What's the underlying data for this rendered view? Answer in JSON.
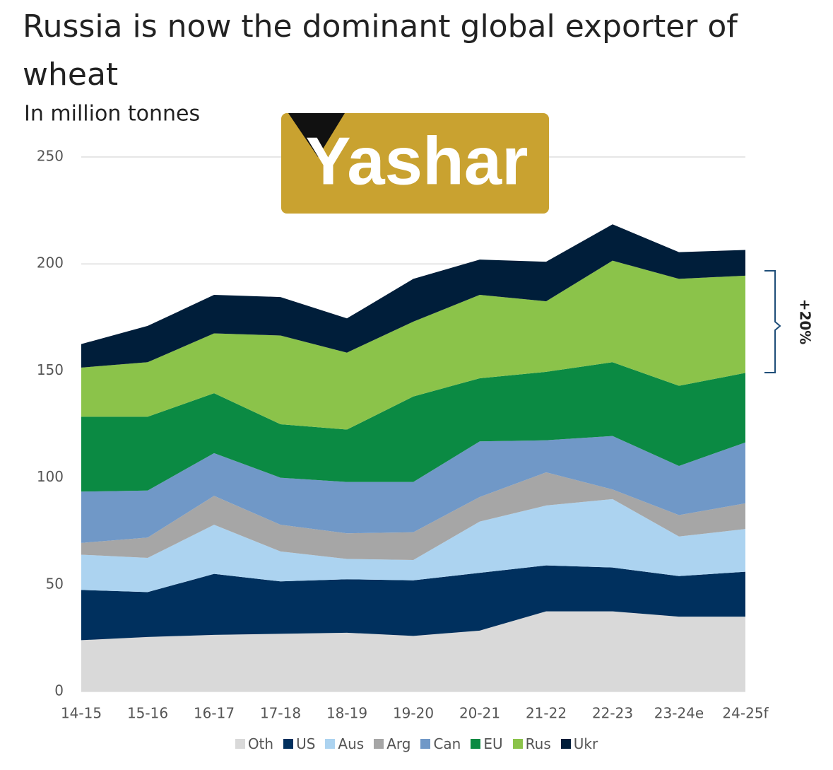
{
  "chart_data": {
    "type": "stacked-area",
    "title": "Russia is now the dominant global exporter of wheat",
    "subtitle": "In million tonnes",
    "logo": "Yashar",
    "annotation": "+20%",
    "categories": [
      "14-15",
      "15-16",
      "16-17",
      "17-18",
      "18-19",
      "19-20",
      "20-21",
      "21-22",
      "22-23",
      "23-24e",
      "24-25f"
    ],
    "series": [
      {
        "name": "Oth",
        "color": "#d9d9d9",
        "values": [
          24,
          25.5,
          26.5,
          27,
          27.5,
          26,
          28.5,
          37.5,
          37.5,
          35,
          35
        ]
      },
      {
        "name": "US",
        "color": "#00305e",
        "values": [
          23.5,
          21,
          28.5,
          24.5,
          25,
          26,
          27,
          21.5,
          20.5,
          19,
          21
        ]
      },
      {
        "name": "Aus",
        "color": "#acd3f0",
        "values": [
          16.5,
          16,
          23,
          14,
          9.5,
          9.5,
          24,
          28,
          32,
          18.5,
          20
        ]
      },
      {
        "name": "Arg",
        "color": "#a6a6a6",
        "values": [
          5.5,
          9.5,
          13.5,
          12.5,
          12,
          13,
          11.5,
          15.5,
          4.5,
          10,
          12
        ]
      },
      {
        "name": "Can",
        "color": "#7098c7",
        "values": [
          24,
          22,
          20,
          22,
          24,
          23.5,
          26,
          15,
          25,
          23,
          28.5
        ]
      },
      {
        "name": "EU",
        "color": "#0b8a43",
        "values": [
          35,
          34.5,
          28,
          25,
          24.5,
          40,
          29.5,
          32,
          34.5,
          37.5,
          32.5
        ]
      },
      {
        "name": "Rus",
        "color": "#8bc34a",
        "values": [
          23,
          25.5,
          28,
          41.5,
          36,
          35,
          39,
          33,
          47.5,
          50,
          45.5
        ]
      },
      {
        "name": "Ukr",
        "color": "#001e3a",
        "values": [
          11,
          17,
          18,
          18,
          16,
          20,
          16.5,
          18.5,
          17,
          12.5,
          12
        ]
      }
    ],
    "ylim": [
      0,
      250
    ],
    "yticks": [
      0,
      50,
      100,
      150,
      200,
      250
    ],
    "grid": true,
    "legend": "bottom"
  }
}
